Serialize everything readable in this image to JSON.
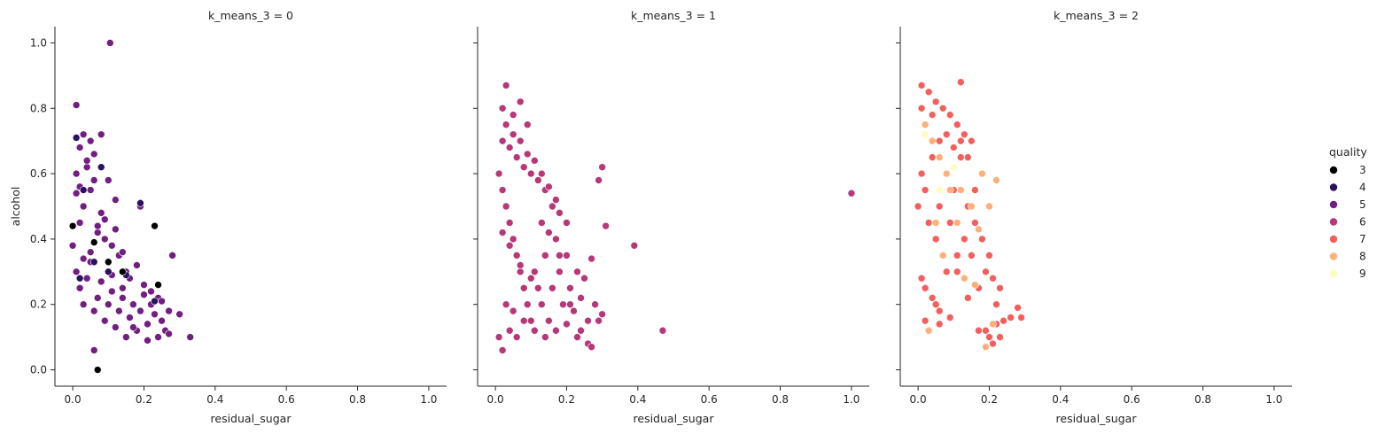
{
  "chart_data": {
    "type": "scatter",
    "xlabel": "residual_sugar",
    "ylabel": "alcohol",
    "xlim": [
      -0.05,
      1.05
    ],
    "ylim": [
      -0.05,
      1.05
    ],
    "x_ticks": [
      "0.0",
      "0.2",
      "0.4",
      "0.6",
      "0.8",
      "1.0"
    ],
    "y_ticks": [
      "0.0",
      "0.2",
      "0.4",
      "0.6",
      "0.8",
      "1.0"
    ],
    "legend": {
      "title": "quality",
      "placement": "right",
      "entries": [
        {
          "label": "3",
          "color": "#000004"
        },
        {
          "label": "4",
          "color": "#2c115f"
        },
        {
          "label": "5",
          "color": "#721f81"
        },
        {
          "label": "6",
          "color": "#b73779"
        },
        {
          "label": "7",
          "color": "#f1605d"
        },
        {
          "label": "8",
          "color": "#feb078"
        },
        {
          "label": "9",
          "color": "#fcfdbf"
        }
      ]
    },
    "facets": [
      {
        "title": "k_means_3 = 0",
        "series": [
          {
            "quality": "5",
            "x": [
              0.0,
              0.01,
              0.02,
              0.03,
              0.04,
              0.05,
              0.06,
              0.07,
              0.08,
              0.09,
              0.1,
              0.11,
              0.12,
              0.13,
              0.14,
              0.15,
              0.16,
              0.17,
              0.18,
              0.19,
              0.2,
              0.21,
              0.22,
              0.23,
              0.24,
              0.25,
              0.26,
              0.27,
              0.28,
              0.3,
              0.33,
              0.02,
              0.03,
              0.05,
              0.07,
              0.09,
              0.11,
              0.13,
              0.15,
              0.18,
              0.01,
              0.04,
              0.06,
              0.08,
              0.12,
              0.19,
              0.1,
              0.14,
              0.02,
              0.05,
              0.08,
              0.03,
              0.01,
              0.06,
              0.04,
              0.105,
              0.01,
              0.02,
              0.07,
              0.2,
              0.16,
              0.22,
              0.25,
              0.12,
              0.09,
              0.03,
              0.05,
              0.17,
              0.21,
              0.24,
              0.27,
              0.14,
              0.11,
              0.06
            ],
            "y": [
              0.38,
              0.3,
              0.25,
              0.2,
              0.28,
              0.33,
              0.18,
              0.22,
              0.27,
              0.15,
              0.2,
              0.24,
              0.13,
              0.18,
              0.22,
              0.1,
              0.16,
              0.2,
              0.12,
              0.18,
              0.23,
              0.14,
              0.2,
              0.17,
              0.22,
              0.15,
              0.12,
              0.18,
              0.35,
              0.17,
              0.1,
              0.45,
              0.5,
              0.55,
              0.42,
              0.4,
              0.38,
              0.35,
              0.3,
              0.32,
              0.6,
              0.62,
              0.58,
              0.48,
              0.52,
              0.5,
              0.58,
              0.36,
              0.68,
              0.7,
              0.72,
              0.72,
              0.81,
              0.66,
              0.64,
              1.0,
              0.54,
              0.56,
              0.44,
              0.26,
              0.28,
              0.24,
              0.21,
              0.43,
              0.46,
              0.34,
              0.36,
              0.13,
              0.09,
              0.1,
              0.11,
              0.25,
              0.29,
              0.06
            ]
          },
          {
            "quality": "4",
            "x": [
              0.01,
              0.03,
              0.06,
              0.1,
              0.15,
              0.19,
              0.23,
              0.02,
              0.08
            ],
            "y": [
              0.71,
              0.55,
              0.33,
              0.3,
              0.29,
              0.51,
              0.21,
              0.28,
              0.62
            ]
          },
          {
            "quality": "3",
            "x": [
              0.0,
              0.07,
              0.06,
              0.23,
              0.1,
              0.24,
              0.14
            ],
            "y": [
              0.44,
              0.0,
              0.39,
              0.44,
              0.33,
              0.26,
              0.3
            ]
          }
        ]
      },
      {
        "title": "k_means_3 = 1",
        "series": [
          {
            "quality": "6",
            "x": [
              0.01,
              0.02,
              0.03,
              0.04,
              0.05,
              0.06,
              0.07,
              0.08,
              0.09,
              0.1,
              0.11,
              0.12,
              0.13,
              0.14,
              0.15,
              0.16,
              0.17,
              0.18,
              0.19,
              0.2,
              0.21,
              0.22,
              0.23,
              0.24,
              0.25,
              0.26,
              0.27,
              0.28,
              0.29,
              0.3,
              0.31,
              0.02,
              0.04,
              0.06,
              0.08,
              0.1,
              0.12,
              0.14,
              0.16,
              0.18,
              0.2,
              0.03,
              0.05,
              0.07,
              0.09,
              0.11,
              0.13,
              0.15,
              0.17,
              0.02,
              0.03,
              0.05,
              0.07,
              0.09,
              0.01,
              0.02,
              0.04,
              0.06,
              0.03,
              0.05,
              0.08,
              0.11,
              0.14,
              0.17,
              0.2,
              0.23,
              0.26,
              0.29,
              0.39,
              0.47,
              1.0,
              0.02,
              0.04,
              0.07,
              0.1,
              0.13,
              0.15,
              0.18,
              0.21,
              0.24,
              0.27,
              0.3
            ],
            "y": [
              0.6,
              0.55,
              0.5,
              0.45,
              0.4,
              0.35,
              0.3,
              0.25,
              0.2,
              0.15,
              0.3,
              0.25,
              0.2,
              0.35,
              0.15,
              0.25,
              0.4,
              0.3,
              0.2,
              0.35,
              0.25,
              0.18,
              0.3,
              0.22,
              0.28,
              0.15,
              0.34,
              0.2,
              0.58,
              0.62,
              0.44,
              0.7,
              0.68,
              0.65,
              0.62,
              0.6,
              0.58,
              0.55,
              0.5,
              0.48,
              0.45,
              0.75,
              0.72,
              0.7,
              0.66,
              0.64,
              0.6,
              0.56,
              0.52,
              0.8,
              0.87,
              0.78,
              0.82,
              0.75,
              0.1,
              0.06,
              0.12,
              0.1,
              0.2,
              0.18,
              0.15,
              0.12,
              0.1,
              0.12,
              0.14,
              0.1,
              0.08,
              0.15,
              0.38,
              0.12,
              0.54,
              0.42,
              0.38,
              0.32,
              0.28,
              0.45,
              0.42,
              0.35,
              0.2,
              0.12,
              0.07,
              0.17
            ]
          }
        ]
      },
      {
        "title": "k_means_3 = 2",
        "series": [
          {
            "quality": "7",
            "x": [
              0.0,
              0.01,
              0.02,
              0.03,
              0.04,
              0.05,
              0.06,
              0.07,
              0.08,
              0.09,
              0.1,
              0.11,
              0.12,
              0.13,
              0.14,
              0.15,
              0.16,
              0.17,
              0.18,
              0.19,
              0.2,
              0.21,
              0.22,
              0.23,
              0.24,
              0.26,
              0.28,
              0.29,
              0.01,
              0.02,
              0.04,
              0.06,
              0.08,
              0.1,
              0.12,
              0.14,
              0.16,
              0.01,
              0.03,
              0.05,
              0.07,
              0.09,
              0.11,
              0.13,
              0.15,
              0.02,
              0.04,
              0.06,
              0.12,
              0.02,
              0.05,
              0.08,
              0.11,
              0.01,
              0.03,
              0.06,
              0.09,
              0.14,
              0.17,
              0.2,
              0.22,
              0.23,
              0.21,
              0.19
            ],
            "y": [
              0.5,
              0.6,
              0.55,
              0.45,
              0.65,
              0.4,
              0.5,
              0.35,
              0.6,
              0.45,
              0.55,
              0.3,
              0.65,
              0.4,
              0.5,
              0.35,
              0.45,
              0.25,
              0.4,
              0.3,
              0.35,
              0.28,
              0.2,
              0.25,
              0.15,
              0.16,
              0.19,
              0.16,
              0.8,
              0.75,
              0.78,
              0.7,
              0.72,
              0.68,
              0.7,
              0.65,
              0.55,
              0.87,
              0.85,
              0.82,
              0.8,
              0.78,
              0.75,
              0.72,
              0.7,
              0.25,
              0.22,
              0.18,
              0.88,
              0.15,
              0.2,
              0.3,
              0.35,
              0.28,
              0.12,
              0.14,
              0.16,
              0.22,
              0.12,
              0.1,
              0.14,
              0.1,
              0.08,
              0.12
            ]
          },
          {
            "quality": "8",
            "x": [
              0.02,
              0.04,
              0.06,
              0.08,
              0.1,
              0.12,
              0.15,
              0.18,
              0.2,
              0.22,
              0.05,
              0.07,
              0.09,
              0.13,
              0.16,
              0.03,
              0.11,
              0.19,
              0.21,
              0.17
            ],
            "y": [
              0.75,
              0.7,
              0.65,
              0.6,
              0.62,
              0.55,
              0.5,
              0.6,
              0.5,
              0.58,
              0.45,
              0.35,
              0.55,
              0.28,
              0.26,
              0.12,
              0.45,
              0.07,
              0.14,
              0.43
            ]
          },
          {
            "quality": "9",
            "x": [
              0.02,
              0.06,
              0.1
            ],
            "y": [
              0.72,
              0.55,
              0.62
            ]
          }
        ]
      }
    ]
  }
}
